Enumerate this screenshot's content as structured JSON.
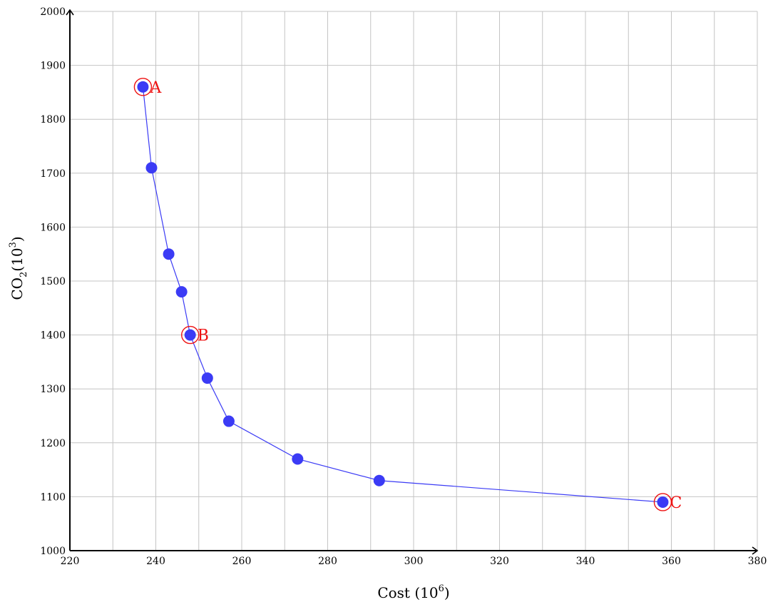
{
  "chart_data": {
    "type": "line",
    "xlabel": "Cost (10^6)",
    "xlabel_base": "Cost (10",
    "xlabel_exp": "6",
    "xlabel_close": ")",
    "ylabel_base": "CO",
    "ylabel_sub": "2",
    "ylabel_mid": "(10",
    "ylabel_exp": "3",
    "ylabel_close": ")",
    "xlim": [
      220,
      380
    ],
    "ylim": [
      1000,
      2000
    ],
    "x_ticks": [
      220,
      240,
      260,
      280,
      300,
      320,
      340,
      360,
      380
    ],
    "y_ticks": [
      1000,
      1100,
      1200,
      1300,
      1400,
      1500,
      1600,
      1700,
      1800,
      1900,
      2000
    ],
    "grid": true,
    "series": [
      {
        "color": "#3b3bf5",
        "x": [
          237,
          239,
          243,
          246,
          248,
          252,
          257,
          273,
          292,
          358
        ],
        "y": [
          1860,
          1710,
          1550,
          1480,
          1400,
          1320,
          1240,
          1170,
          1130,
          1090
        ]
      }
    ],
    "highlighted": [
      {
        "label": "A",
        "x": 237,
        "y": 1860
      },
      {
        "label": "B",
        "x": 248,
        "y": 1400
      },
      {
        "label": "C",
        "x": 358,
        "y": 1090
      }
    ],
    "highlight_color": "#ee1111"
  }
}
